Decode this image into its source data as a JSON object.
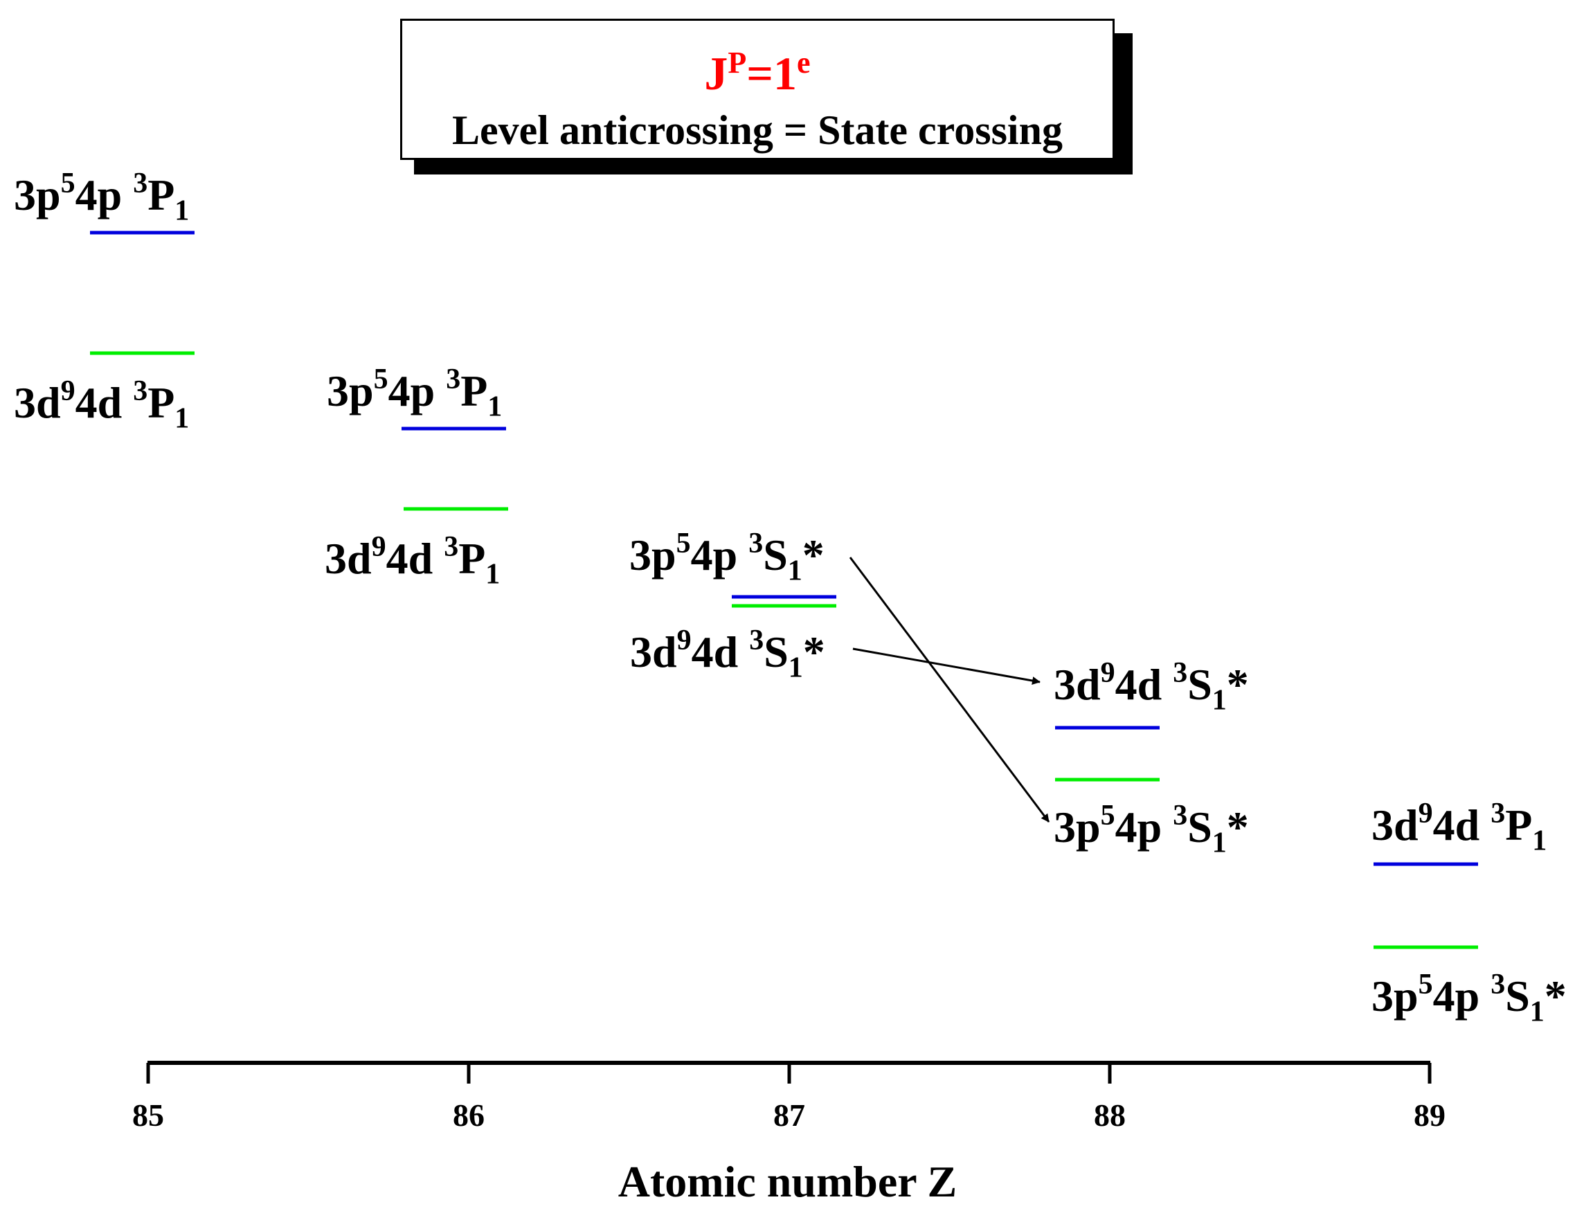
{
  "header": {
    "title_base": "J",
    "title_sup_left": "P",
    "title_mid": "=1",
    "title_sup_right": "e",
    "subtitle": "Level anticrossing = State crossing"
  },
  "colors": {
    "upper_level": "#0000dd",
    "lower_level": "#00ee00",
    "title": "#ff0000",
    "axis": "#000000"
  },
  "axis": {
    "label": "Atomic number Z",
    "ticks": [
      "85",
      "86",
      "87",
      "88",
      "89"
    ]
  },
  "levels": [
    {
      "z": "85",
      "a": "3p",
      "a_sup": "5",
      "b": "4p ",
      "c_sup": "3",
      "c": "P",
      "c_sub": "1",
      "star": ""
    },
    {
      "z": "85",
      "a": "3d",
      "a_sup": "9",
      "b": "4d ",
      "c_sup": "3",
      "c": "P",
      "c_sub": "1",
      "star": ""
    },
    {
      "z": "86",
      "a": "3p",
      "a_sup": "5",
      "b": "4p ",
      "c_sup": "3",
      "c": "P",
      "c_sub": "1",
      "star": ""
    },
    {
      "z": "86",
      "a": "3d",
      "a_sup": "9",
      "b": "4d ",
      "c_sup": "3",
      "c": "P",
      "c_sub": "1",
      "star": ""
    },
    {
      "z": "87",
      "a": "3p",
      "a_sup": "5",
      "b": "4p ",
      "c_sup": "3",
      "c": "S",
      "c_sub": "1",
      "star": "*"
    },
    {
      "z": "87",
      "a": "3d",
      "a_sup": "9",
      "b": "4d ",
      "c_sup": "3",
      "c": "S",
      "c_sub": "1",
      "star": "*"
    },
    {
      "z": "88",
      "a": "3d",
      "a_sup": "9",
      "b": "4d ",
      "c_sup": "3",
      "c": "S",
      "c_sub": "1",
      "star": "*"
    },
    {
      "z": "88",
      "a": "3p",
      "a_sup": "5",
      "b": "4p ",
      "c_sup": "3",
      "c": "S",
      "c_sub": "1",
      "star": "*"
    },
    {
      "z": "89",
      "a": "3d",
      "a_sup": "9",
      "b": "4d ",
      "c_sup": "3",
      "c": "P",
      "c_sub": "1",
      "star": ""
    },
    {
      "z": "89",
      "a": "3p",
      "a_sup": "5",
      "b": "4p ",
      "c_sup": "3",
      "c": "S",
      "c_sub": "1",
      "star": "*"
    }
  ]
}
